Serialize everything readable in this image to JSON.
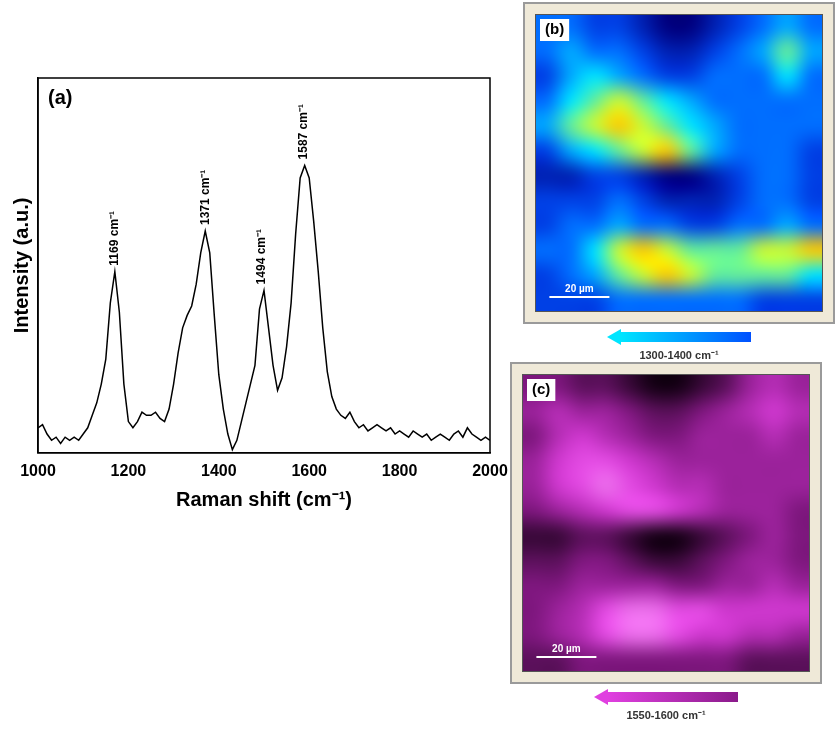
{
  "chart_data": [
    {
      "type": "line",
      "panel": "(a)",
      "x_label": "Raman shift (cm⁻¹)",
      "y_label": "Intensity (a.u.)",
      "color": "#000000",
      "grid": false,
      "tick_labels": "x",
      "xlim": [
        1000,
        2000
      ],
      "xticks": [
        1000,
        1200,
        1400,
        1600,
        1800,
        2000
      ],
      "ylim": [
        0,
        120
      ],
      "x": [
        1000,
        1010,
        1020,
        1030,
        1040,
        1050,
        1060,
        1070,
        1080,
        1090,
        1100,
        1110,
        1120,
        1130,
        1140,
        1150,
        1160,
        1170,
        1180,
        1190,
        1200,
        1210,
        1220,
        1230,
        1240,
        1250,
        1260,
        1270,
        1280,
        1290,
        1300,
        1310,
        1320,
        1330,
        1340,
        1350,
        1360,
        1370,
        1380,
        1390,
        1400,
        1410,
        1420,
        1430,
        1440,
        1450,
        1460,
        1470,
        1480,
        1490,
        1500,
        1510,
        1520,
        1530,
        1540,
        1550,
        1560,
        1570,
        1580,
        1590,
        1600,
        1610,
        1620,
        1630,
        1640,
        1650,
        1660,
        1670,
        1680,
        1690,
        1700,
        1710,
        1720,
        1730,
        1740,
        1750,
        1760,
        1770,
        1780,
        1790,
        1800,
        1810,
        1820,
        1830,
        1840,
        1850,
        1860,
        1870,
        1880,
        1890,
        1900,
        1910,
        1920,
        1930,
        1940,
        1950,
        1960,
        1970,
        1980,
        1990,
        2000
      ],
      "values": [
        8,
        9,
        6,
        4,
        5,
        3,
        5,
        4,
        5,
        4,
        6,
        8,
        12,
        16,
        22,
        30,
        48,
        58,
        45,
        22,
        10,
        8,
        10,
        13,
        12,
        12,
        13,
        11,
        10,
        14,
        22,
        32,
        40,
        44,
        47,
        54,
        64,
        71,
        64,
        44,
        25,
        14,
        6,
        1,
        4,
        10,
        16,
        22,
        28,
        46,
        52,
        40,
        28,
        20,
        24,
        34,
        48,
        70,
        88,
        92,
        88,
        74,
        58,
        40,
        26,
        18,
        14,
        12,
        11,
        13,
        10,
        8,
        9,
        7,
        8,
        9,
        8,
        7,
        8,
        6,
        7,
        6,
        5,
        7,
        6,
        5,
        6,
        4,
        5,
        6,
        5,
        4,
        6,
        7,
        5,
        8,
        6,
        5,
        4,
        5,
        4
      ],
      "annotations": [
        {
          "x": 1169,
          "label": "1169 cm⁻¹"
        },
        {
          "x": 1371,
          "label": "1371 cm⁻¹"
        },
        {
          "x": 1494,
          "label": "1494 cm⁻¹"
        },
        {
          "x": 1587,
          "label": "1587 cm⁻¹"
        }
      ]
    },
    {
      "type": "heatmap",
      "panel": "(b)",
      "caption": "1300-1400 cm⁻¹",
      "tick_labels": false,
      "xlim": [
        0,
        96
      ],
      "ylim": [
        0,
        96
      ],
      "scale_bar": {
        "label": "20 µm",
        "value": 20
      },
      "range": [
        0,
        10
      ],
      "colors": [
        "#00007f",
        "#0050ff",
        "#00e5ff",
        "#ffff00",
        "#ff0000"
      ],
      "cells": [
        [
          3,
          3,
          2,
          2,
          1,
          0,
          0,
          1,
          2,
          3,
          4,
          3
        ],
        [
          3,
          4,
          3,
          3,
          2,
          1,
          1,
          2,
          3,
          4,
          6,
          4
        ],
        [
          2,
          4,
          5,
          4,
          3,
          2,
          2,
          3,
          3,
          3,
          5,
          3
        ],
        [
          3,
          5,
          6,
          7,
          6,
          5,
          4,
          3,
          3,
          3,
          3,
          3
        ],
        [
          4,
          6,
          7,
          8,
          7,
          6,
          5,
          4,
          3,
          3,
          3,
          3
        ],
        [
          2,
          4,
          5,
          6,
          7,
          8,
          6,
          4,
          3,
          3,
          3,
          2
        ],
        [
          1,
          1,
          2,
          2,
          1,
          0,
          0,
          1,
          2,
          3,
          3,
          2
        ],
        [
          2,
          2,
          2,
          3,
          2,
          1,
          1,
          1,
          2,
          3,
          3,
          2
        ],
        [
          2,
          3,
          3,
          4,
          3,
          3,
          2,
          2,
          3,
          3,
          4,
          3
        ],
        [
          3,
          3,
          5,
          7,
          8,
          7,
          6,
          6,
          6,
          7,
          7,
          8
        ],
        [
          2,
          3,
          4,
          6,
          7,
          8,
          7,
          6,
          6,
          6,
          6,
          5
        ],
        [
          2,
          2,
          2,
          3,
          3,
          3,
          3,
          3,
          3,
          2,
          2,
          2
        ]
      ]
    },
    {
      "type": "heatmap",
      "panel": "(c)",
      "caption": "1550-1600 cm⁻¹",
      "tick_labels": false,
      "xlim": [
        0,
        96
      ],
      "ylim": [
        0,
        96
      ],
      "scale_bar": {
        "label": "20 µm",
        "value": 20
      },
      "range": [
        0,
        10
      ],
      "colors": [
        "#140014",
        "#8a1a8a",
        "#e040e0",
        "#ffb0ff"
      ],
      "cells": [
        [
          3,
          3,
          2,
          2,
          1,
          0,
          0,
          1,
          2,
          4,
          5,
          4
        ],
        [
          4,
          5,
          4,
          4,
          3,
          2,
          2,
          3,
          4,
          5,
          6,
          5
        ],
        [
          3,
          5,
          6,
          5,
          4,
          3,
          3,
          4,
          4,
          4,
          5,
          4
        ],
        [
          4,
          6,
          7,
          7,
          6,
          5,
          4,
          4,
          4,
          4,
          4,
          4
        ],
        [
          4,
          6,
          7,
          8,
          7,
          6,
          5,
          5,
          4,
          4,
          4,
          4
        ],
        [
          3,
          4,
          5,
          6,
          7,
          7,
          6,
          5,
          4,
          4,
          4,
          3
        ],
        [
          1,
          1,
          2,
          2,
          1,
          0,
          0,
          1,
          2,
          3,
          4,
          3
        ],
        [
          2,
          2,
          3,
          3,
          2,
          1,
          1,
          2,
          3,
          4,
          4,
          3
        ],
        [
          3,
          3,
          4,
          4,
          4,
          4,
          3,
          3,
          4,
          4,
          5,
          4
        ],
        [
          3,
          4,
          5,
          7,
          8,
          8,
          7,
          7,
          6,
          6,
          6,
          6
        ],
        [
          3,
          4,
          5,
          7,
          8,
          8,
          7,
          6,
          6,
          5,
          5,
          4
        ],
        [
          2,
          2,
          3,
          3,
          3,
          3,
          3,
          3,
          3,
          2,
          2,
          2
        ]
      ]
    }
  ]
}
